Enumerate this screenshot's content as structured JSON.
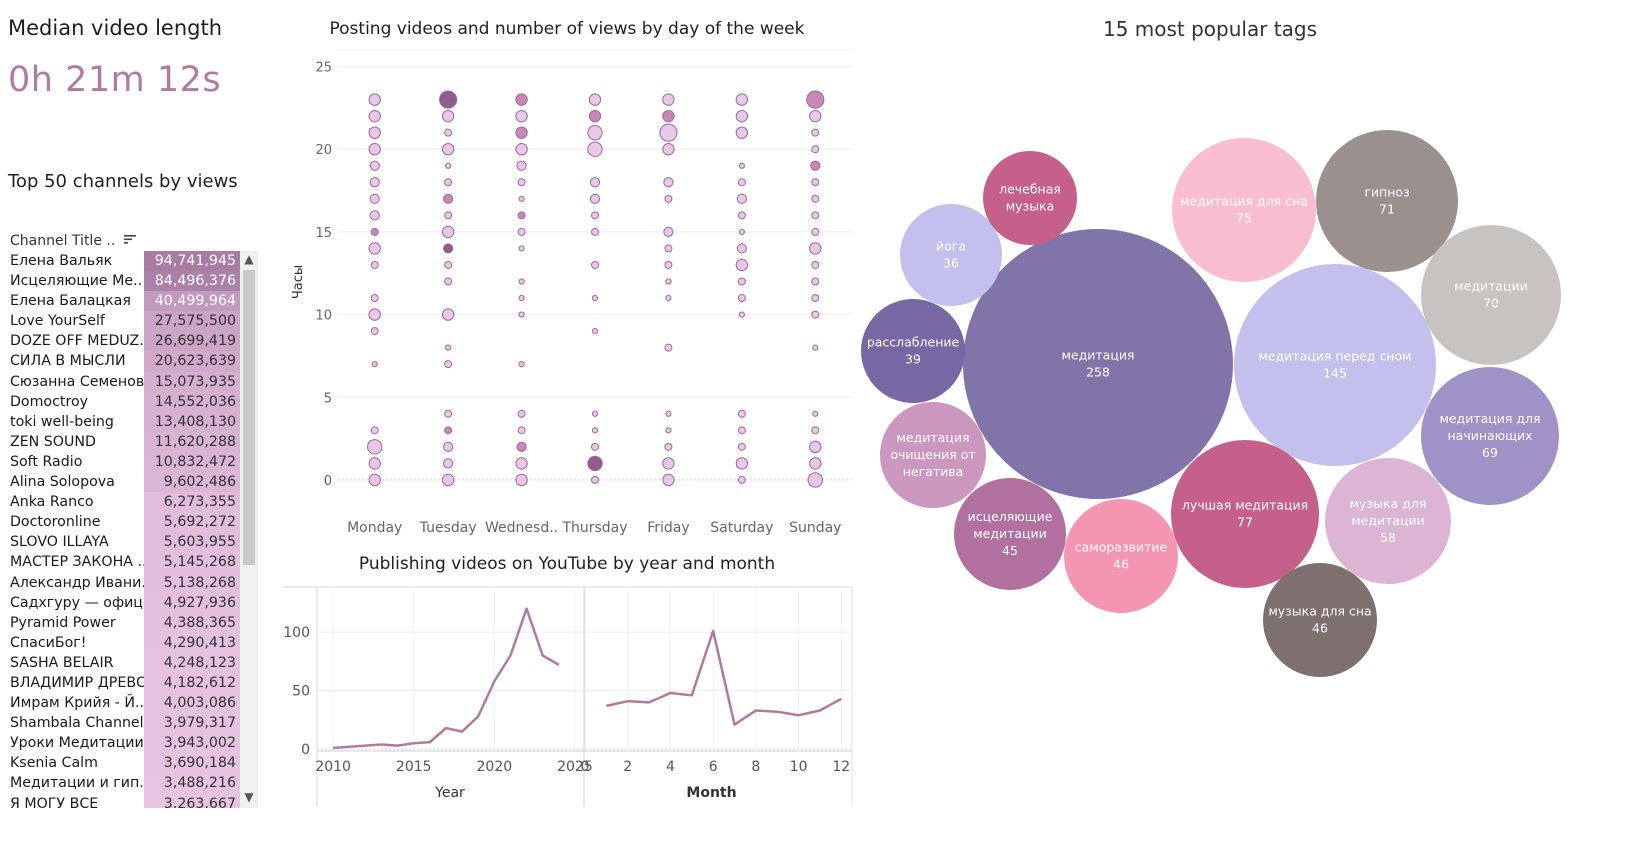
{
  "kpi": {
    "title": "Median video length",
    "value": "0h 21m 12s"
  },
  "colors": {
    "accent": "#b07aa1",
    "table_dark": "#a87ca3",
    "table_light": "#ecc8e6"
  },
  "top_channels": {
    "title": "Top 50 channels by views",
    "column_header": "Channel Title ..",
    "rows": [
      {
        "name": "Елена Вальяк",
        "value": "94,741,945",
        "views": 94741945
      },
      {
        "name": "Исцеляющие Ме..",
        "value": "84,496,376",
        "views": 84496376
      },
      {
        "name": "Елена Балацкая",
        "value": "40,499,964",
        "views": 40499964
      },
      {
        "name": "Love YourSelf",
        "value": "27,575,500",
        "views": 27575500
      },
      {
        "name": "DOZE OFF MEDUZ..",
        "value": "26,699,419",
        "views": 26699419
      },
      {
        "name": "СИЛА В МЫСЛИ",
        "value": "20,623,639",
        "views": 20623639
      },
      {
        "name": "Сюзанна Семенова",
        "value": "15,073,935",
        "views": 15073935
      },
      {
        "name": "Domoctroy",
        "value": "14,552,036",
        "views": 14552036
      },
      {
        "name": "toki well-being",
        "value": "13,408,130",
        "views": 13408130
      },
      {
        "name": "ZEN SOUND",
        "value": "11,620,288",
        "views": 11620288
      },
      {
        "name": "Soft Radio",
        "value": "10,832,472",
        "views": 10832472
      },
      {
        "name": "Alina Solopova",
        "value": "9,602,486",
        "views": 9602486
      },
      {
        "name": "Anka Ranco",
        "value": "6,273,355",
        "views": 6273355
      },
      {
        "name": "Doctoronline",
        "value": "5,692,272",
        "views": 5692272
      },
      {
        "name": "SLOVO ILLAYA",
        "value": "5,603,955",
        "views": 5603955
      },
      {
        "name": "МАСТЕР ЗАКОНА ..",
        "value": "5,145,268",
        "views": 5145268
      },
      {
        "name": "Александр Ивани..",
        "value": "5,138,268",
        "views": 5138268
      },
      {
        "name": "Садхгуру — офиц..",
        "value": "4,927,936",
        "views": 4927936
      },
      {
        "name": "Pyramid Power",
        "value": "4,388,365",
        "views": 4388365
      },
      {
        "name": "СпасиБог!",
        "value": "4,290,413",
        "views": 4290413
      },
      {
        "name": "SASHA BELAIR",
        "value": "4,248,123",
        "views": 4248123
      },
      {
        "name": "ВЛАДИМИР ДРЕВС",
        "value": "4,182,612",
        "views": 4182612
      },
      {
        "name": "Имрам Крийя - Й..",
        "value": "4,003,086",
        "views": 4003086
      },
      {
        "name": "Shambala Channel",
        "value": "3,979,317",
        "views": 3979317
      },
      {
        "name": "Уроки Медитации",
        "value": "3,943,002",
        "views": 3943002
      },
      {
        "name": "Ksenia Calm",
        "value": "3,690,184",
        "views": 3690184
      },
      {
        "name": "Медитации и гип..",
        "value": "3,488,216",
        "views": 3488216
      },
      {
        "name": "Я МОГУ ВСЕ",
        "value": "3,263,667",
        "views": 3263667
      }
    ]
  },
  "chart_data": [
    {
      "type": "scatter",
      "title": "Posting videos and number of views by day of the week",
      "ylabel": "Часы",
      "xlabel": "",
      "categories": [
        "Monday",
        "Tuesday",
        "Wednesd..",
        "Thursday",
        "Friday",
        "Saturday",
        "Sunday"
      ],
      "ylim": [
        -2,
        26
      ],
      "yticks": [
        0,
        5,
        10,
        15,
        20,
        25
      ],
      "points": [
        {
          "d": 0,
          "h": 23,
          "s": 3
        },
        {
          "d": 0,
          "h": 22,
          "s": 3
        },
        {
          "d": 0,
          "h": 21,
          "s": 3
        },
        {
          "d": 0,
          "h": 20,
          "s": 3
        },
        {
          "d": 0,
          "h": 19,
          "s": 2
        },
        {
          "d": 0,
          "h": 18,
          "s": 2
        },
        {
          "d": 0,
          "h": 17,
          "s": 2
        },
        {
          "d": 0,
          "h": 16,
          "s": 2
        },
        {
          "d": 0,
          "h": 15,
          "s": 1,
          "dk": 1
        },
        {
          "d": 0,
          "h": 14,
          "s": 3
        },
        {
          "d": 0,
          "h": 13,
          "s": 1
        },
        {
          "d": 0,
          "h": 11,
          "s": 1
        },
        {
          "d": 0,
          "h": 10,
          "s": 3
        },
        {
          "d": 0,
          "h": 9,
          "s": 1
        },
        {
          "d": 0,
          "h": 7,
          "s": 0
        },
        {
          "d": 0,
          "h": 3,
          "s": 1
        },
        {
          "d": 0,
          "h": 2,
          "s": 4
        },
        {
          "d": 0,
          "h": 1,
          "s": 3
        },
        {
          "d": 0,
          "h": 0,
          "s": 3
        },
        {
          "d": 1,
          "h": 23,
          "s": 5,
          "dk": 2
        },
        {
          "d": 1,
          "h": 22,
          "s": 3
        },
        {
          "d": 1,
          "h": 21,
          "s": 1
        },
        {
          "d": 1,
          "h": 20,
          "s": 3
        },
        {
          "d": 1,
          "h": 19,
          "s": 0
        },
        {
          "d": 1,
          "h": 18,
          "s": 1
        },
        {
          "d": 1,
          "h": 17,
          "s": 2,
          "dk": 1
        },
        {
          "d": 1,
          "h": 16,
          "s": 1
        },
        {
          "d": 1,
          "h": 15,
          "s": 3
        },
        {
          "d": 1,
          "h": 14,
          "s": 2,
          "dk": 2
        },
        {
          "d": 1,
          "h": 13,
          "s": 1
        },
        {
          "d": 1,
          "h": 12,
          "s": 1
        },
        {
          "d": 1,
          "h": 10,
          "s": 3
        },
        {
          "d": 1,
          "h": 8,
          "s": 0
        },
        {
          "d": 1,
          "h": 7,
          "s": 1
        },
        {
          "d": 1,
          "h": 4,
          "s": 1
        },
        {
          "d": 1,
          "h": 3,
          "s": 1,
          "dk": 1
        },
        {
          "d": 1,
          "h": 2,
          "s": 2
        },
        {
          "d": 1,
          "h": 1,
          "s": 2
        },
        {
          "d": 1,
          "h": 0,
          "s": 3
        },
        {
          "d": 2,
          "h": 23,
          "s": 3,
          "dk": 1
        },
        {
          "d": 2,
          "h": 22,
          "s": 3
        },
        {
          "d": 2,
          "h": 21,
          "s": 3,
          "dk": 1
        },
        {
          "d": 2,
          "h": 20,
          "s": 3
        },
        {
          "d": 2,
          "h": 19,
          "s": 2
        },
        {
          "d": 2,
          "h": 18,
          "s": 1
        },
        {
          "d": 2,
          "h": 17,
          "s": 0
        },
        {
          "d": 2,
          "h": 16,
          "s": 1,
          "dk": 1
        },
        {
          "d": 2,
          "h": 15,
          "s": 1
        },
        {
          "d": 2,
          "h": 14,
          "s": 0
        },
        {
          "d": 2,
          "h": 12,
          "s": 0
        },
        {
          "d": 2,
          "h": 11,
          "s": 0
        },
        {
          "d": 2,
          "h": 10,
          "s": 0
        },
        {
          "d": 2,
          "h": 7,
          "s": 0
        },
        {
          "d": 2,
          "h": 4,
          "s": 1
        },
        {
          "d": 2,
          "h": 3,
          "s": 1
        },
        {
          "d": 2,
          "h": 2,
          "s": 2,
          "dk": 1
        },
        {
          "d": 2,
          "h": 1,
          "s": 3
        },
        {
          "d": 2,
          "h": 0,
          "s": 3
        },
        {
          "d": 3,
          "h": 23,
          "s": 3
        },
        {
          "d": 3,
          "h": 22,
          "s": 3,
          "dk": 1
        },
        {
          "d": 3,
          "h": 21,
          "s": 4
        },
        {
          "d": 3,
          "h": 20,
          "s": 4
        },
        {
          "d": 3,
          "h": 18,
          "s": 2
        },
        {
          "d": 3,
          "h": 17,
          "s": 2
        },
        {
          "d": 3,
          "h": 16,
          "s": 1
        },
        {
          "d": 3,
          "h": 15,
          "s": 1
        },
        {
          "d": 3,
          "h": 13,
          "s": 1
        },
        {
          "d": 3,
          "h": 11,
          "s": 0
        },
        {
          "d": 3,
          "h": 9,
          "s": 0
        },
        {
          "d": 3,
          "h": 4,
          "s": 0
        },
        {
          "d": 3,
          "h": 3,
          "s": 0
        },
        {
          "d": 3,
          "h": 2,
          "s": 1
        },
        {
          "d": 3,
          "h": 1,
          "s": 4,
          "dk": 2
        },
        {
          "d": 3,
          "h": 0,
          "s": 1
        },
        {
          "d": 4,
          "h": 23,
          "s": 3
        },
        {
          "d": 4,
          "h": 22,
          "s": 3,
          "dk": 1
        },
        {
          "d": 4,
          "h": 21,
          "s": 5
        },
        {
          "d": 4,
          "h": 20,
          "s": 3
        },
        {
          "d": 4,
          "h": 18,
          "s": 2
        },
        {
          "d": 4,
          "h": 17,
          "s": 1
        },
        {
          "d": 4,
          "h": 15,
          "s": 2
        },
        {
          "d": 4,
          "h": 14,
          "s": 1
        },
        {
          "d": 4,
          "h": 13,
          "s": 1
        },
        {
          "d": 4,
          "h": 12,
          "s": 0
        },
        {
          "d": 4,
          "h": 11,
          "s": 0
        },
        {
          "d": 4,
          "h": 8,
          "s": 1
        },
        {
          "d": 4,
          "h": 4,
          "s": 0
        },
        {
          "d": 4,
          "h": 3,
          "s": 0
        },
        {
          "d": 4,
          "h": 2,
          "s": 1
        },
        {
          "d": 4,
          "h": 1,
          "s": 3
        },
        {
          "d": 4,
          "h": 0,
          "s": 3
        },
        {
          "d": 5,
          "h": 23,
          "s": 3
        },
        {
          "d": 5,
          "h": 22,
          "s": 3
        },
        {
          "d": 5,
          "h": 21,
          "s": 3
        },
        {
          "d": 5,
          "h": 19,
          "s": 0
        },
        {
          "d": 5,
          "h": 18,
          "s": 1
        },
        {
          "d": 5,
          "h": 17,
          "s": 2
        },
        {
          "d": 5,
          "h": 16,
          "s": 1
        },
        {
          "d": 5,
          "h": 15,
          "s": 0
        },
        {
          "d": 5,
          "h": 14,
          "s": 2
        },
        {
          "d": 5,
          "h": 13,
          "s": 3
        },
        {
          "d": 5,
          "h": 12,
          "s": 1
        },
        {
          "d": 5,
          "h": 11,
          "s": 1
        },
        {
          "d": 5,
          "h": 10,
          "s": 0
        },
        {
          "d": 5,
          "h": 4,
          "s": 1
        },
        {
          "d": 5,
          "h": 3,
          "s": 1
        },
        {
          "d": 5,
          "h": 2,
          "s": 1
        },
        {
          "d": 5,
          "h": 1,
          "s": 3
        },
        {
          "d": 5,
          "h": 0,
          "s": 1
        },
        {
          "d": 6,
          "h": 23,
          "s": 5,
          "dk": 1
        },
        {
          "d": 6,
          "h": 22,
          "s": 3
        },
        {
          "d": 6,
          "h": 21,
          "s": 1
        },
        {
          "d": 6,
          "h": 20,
          "s": 1
        },
        {
          "d": 6,
          "h": 19,
          "s": 2,
          "dk": 1
        },
        {
          "d": 6,
          "h": 18,
          "s": 1
        },
        {
          "d": 6,
          "h": 17,
          "s": 1
        },
        {
          "d": 6,
          "h": 16,
          "s": 1
        },
        {
          "d": 6,
          "h": 15,
          "s": 1
        },
        {
          "d": 6,
          "h": 14,
          "s": 3
        },
        {
          "d": 6,
          "h": 13,
          "s": 1
        },
        {
          "d": 6,
          "h": 12,
          "s": 1
        },
        {
          "d": 6,
          "h": 11,
          "s": 1
        },
        {
          "d": 6,
          "h": 10,
          "s": 1
        },
        {
          "d": 6,
          "h": 8,
          "s": 0
        },
        {
          "d": 6,
          "h": 4,
          "s": 0
        },
        {
          "d": 6,
          "h": 3,
          "s": 1
        },
        {
          "d": 6,
          "h": 2,
          "s": 3
        },
        {
          "d": 6,
          "h": 1,
          "s": 3
        },
        {
          "d": 6,
          "h": 0,
          "s": 4
        }
      ]
    },
    {
      "type": "line",
      "title": "Publishing videos on YouTube by year and month",
      "panels": [
        {
          "xlabel": "Year",
          "xlim": [
            2009,
            2025.5
          ],
          "xticks": [
            2010,
            2015,
            2020,
            2025
          ],
          "ylim": [
            -5,
            130
          ],
          "yticks": [
            0,
            50,
            100
          ],
          "x": [
            2010,
            2011,
            2012,
            2013,
            2014,
            2015,
            2016,
            2017,
            2018,
            2019,
            2020,
            2021,
            2022,
            2023,
            2024
          ],
          "y": [
            1,
            2,
            3,
            4,
            3,
            5,
            6,
            18,
            15,
            28,
            58,
            80,
            120,
            80,
            72
          ]
        },
        {
          "xlabel": "Month",
          "xlim": [
            0,
            12.5
          ],
          "xticks": [
            0,
            2,
            4,
            6,
            8,
            10,
            12
          ],
          "ylim": [
            -5,
            130
          ],
          "x": [
            1,
            2,
            3,
            4,
            5,
            6,
            7,
            8,
            9,
            10,
            11,
            12
          ],
          "y": [
            37,
            41,
            40,
            48,
            46,
            101,
            21,
            33,
            32,
            29,
            33,
            43
          ]
        }
      ]
    },
    {
      "type": "bubble",
      "title": "15 most popular tags",
      "bubbles": [
        {
          "label": "медитация",
          "value": "258",
          "color": "#8174a8"
        },
        {
          "label": "медитация перед сном",
          "value": "145",
          "color": "#c4c0ed"
        },
        {
          "label": "лучшая медитация",
          "value": "77",
          "color": "#c5608a"
        },
        {
          "label": "медитация для сна",
          "value": "75",
          "color": "#f9bdd0"
        },
        {
          "label": "гипноз",
          "value": "71",
          "color": "#9a908e"
        },
        {
          "label": "медитации",
          "value": "70",
          "color": "#c7c3c0"
        },
        {
          "label": "медитация для начинающих",
          "value": "69",
          "color": "#9f92c7"
        },
        {
          "label": "музыка для медитации",
          "value": "58",
          "color": "#dbb5d3"
        },
        {
          "label": "саморазвитие",
          "value": "46",
          "color": "#f495b1"
        },
        {
          "label": "музыка для сна",
          "value": "46",
          "color": "#7e706e"
        },
        {
          "label": "исцеляющие медитации",
          "value": "45",
          "color": "#b170a0"
        },
        {
          "label": "расслабление",
          "value": "39",
          "color": "#7767a3"
        },
        {
          "label": "медитация очищения от негатива",
          "value": "",
          "color": "#cc97bf"
        },
        {
          "label": "йога",
          "value": "36",
          "color": "#c4c0ed"
        },
        {
          "label": "лечебная музыка",
          "value": "",
          "color": "#c5608a"
        }
      ]
    }
  ]
}
